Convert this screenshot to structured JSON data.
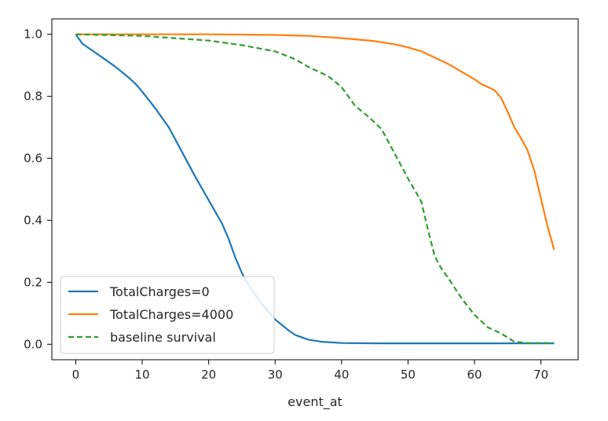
{
  "chart_data": {
    "type": "line",
    "title": "",
    "xlabel": "event_at",
    "ylabel": "",
    "xlim": [
      -3.6,
      75.6
    ],
    "ylim": [
      -0.05,
      1.05
    ],
    "xticks": [
      0,
      10,
      20,
      30,
      40,
      50,
      60,
      70
    ],
    "yticks": [
      0.0,
      0.2,
      0.4,
      0.6,
      0.8,
      1.0
    ],
    "xtick_labels": [
      "0",
      "10",
      "20",
      "30",
      "40",
      "50",
      "60",
      "70"
    ],
    "ytick_labels": [
      "0.0",
      "0.2",
      "0.4",
      "0.6",
      "0.8",
      "1.0"
    ],
    "grid": false,
    "legend_position": "lower-left",
    "series": [
      {
        "name": "TotalCharges=0",
        "color": "#1f77b4",
        "dash": "solid",
        "x": [
          0,
          1,
          2,
          4,
          6,
          8,
          9,
          10,
          12,
          14,
          16,
          18,
          20,
          22,
          23,
          24,
          25,
          26,
          28,
          30,
          32,
          33,
          35,
          37,
          40,
          45,
          50,
          55,
          60,
          65,
          70,
          72
        ],
        "y": [
          1.0,
          0.97,
          0.955,
          0.925,
          0.895,
          0.86,
          0.84,
          0.815,
          0.76,
          0.7,
          0.62,
          0.54,
          0.465,
          0.39,
          0.34,
          0.28,
          0.23,
          0.19,
          0.13,
          0.08,
          0.045,
          0.03,
          0.015,
          0.008,
          0.004,
          0.003,
          0.003,
          0.003,
          0.003,
          0.003,
          0.003,
          0.003
        ]
      },
      {
        "name": "TotalCharges=4000",
        "color": "#ff7f0e",
        "dash": "solid",
        "x": [
          0,
          10,
          20,
          30,
          35,
          40,
          45,
          48,
          50,
          52,
          54,
          56,
          58,
          60,
          61,
          62,
          63,
          64,
          65,
          66,
          67,
          68,
          69,
          70,
          71,
          72
        ],
        "y": [
          1.0,
          1.0,
          1.0,
          0.998,
          0.995,
          0.988,
          0.978,
          0.968,
          0.958,
          0.945,
          0.925,
          0.905,
          0.88,
          0.855,
          0.84,
          0.83,
          0.82,
          0.795,
          0.75,
          0.7,
          0.665,
          0.625,
          0.56,
          0.47,
          0.38,
          0.305
        ]
      },
      {
        "name": "baseline survival",
        "color": "#2ca02c",
        "dash": "dashed",
        "x": [
          0,
          10,
          20,
          25,
          30,
          33,
          35,
          38,
          40,
          42,
          44,
          46,
          48,
          50,
          52,
          53,
          54,
          55,
          56,
          58,
          60,
          62,
          64,
          66,
          68,
          70,
          72
        ],
        "y": [
          1.0,
          0.995,
          0.98,
          0.965,
          0.945,
          0.92,
          0.895,
          0.865,
          0.83,
          0.77,
          0.735,
          0.695,
          0.615,
          0.535,
          0.46,
          0.37,
          0.285,
          0.245,
          0.215,
          0.15,
          0.095,
          0.055,
          0.035,
          0.008,
          0.004,
          0.004,
          0.004
        ]
      }
    ]
  }
}
